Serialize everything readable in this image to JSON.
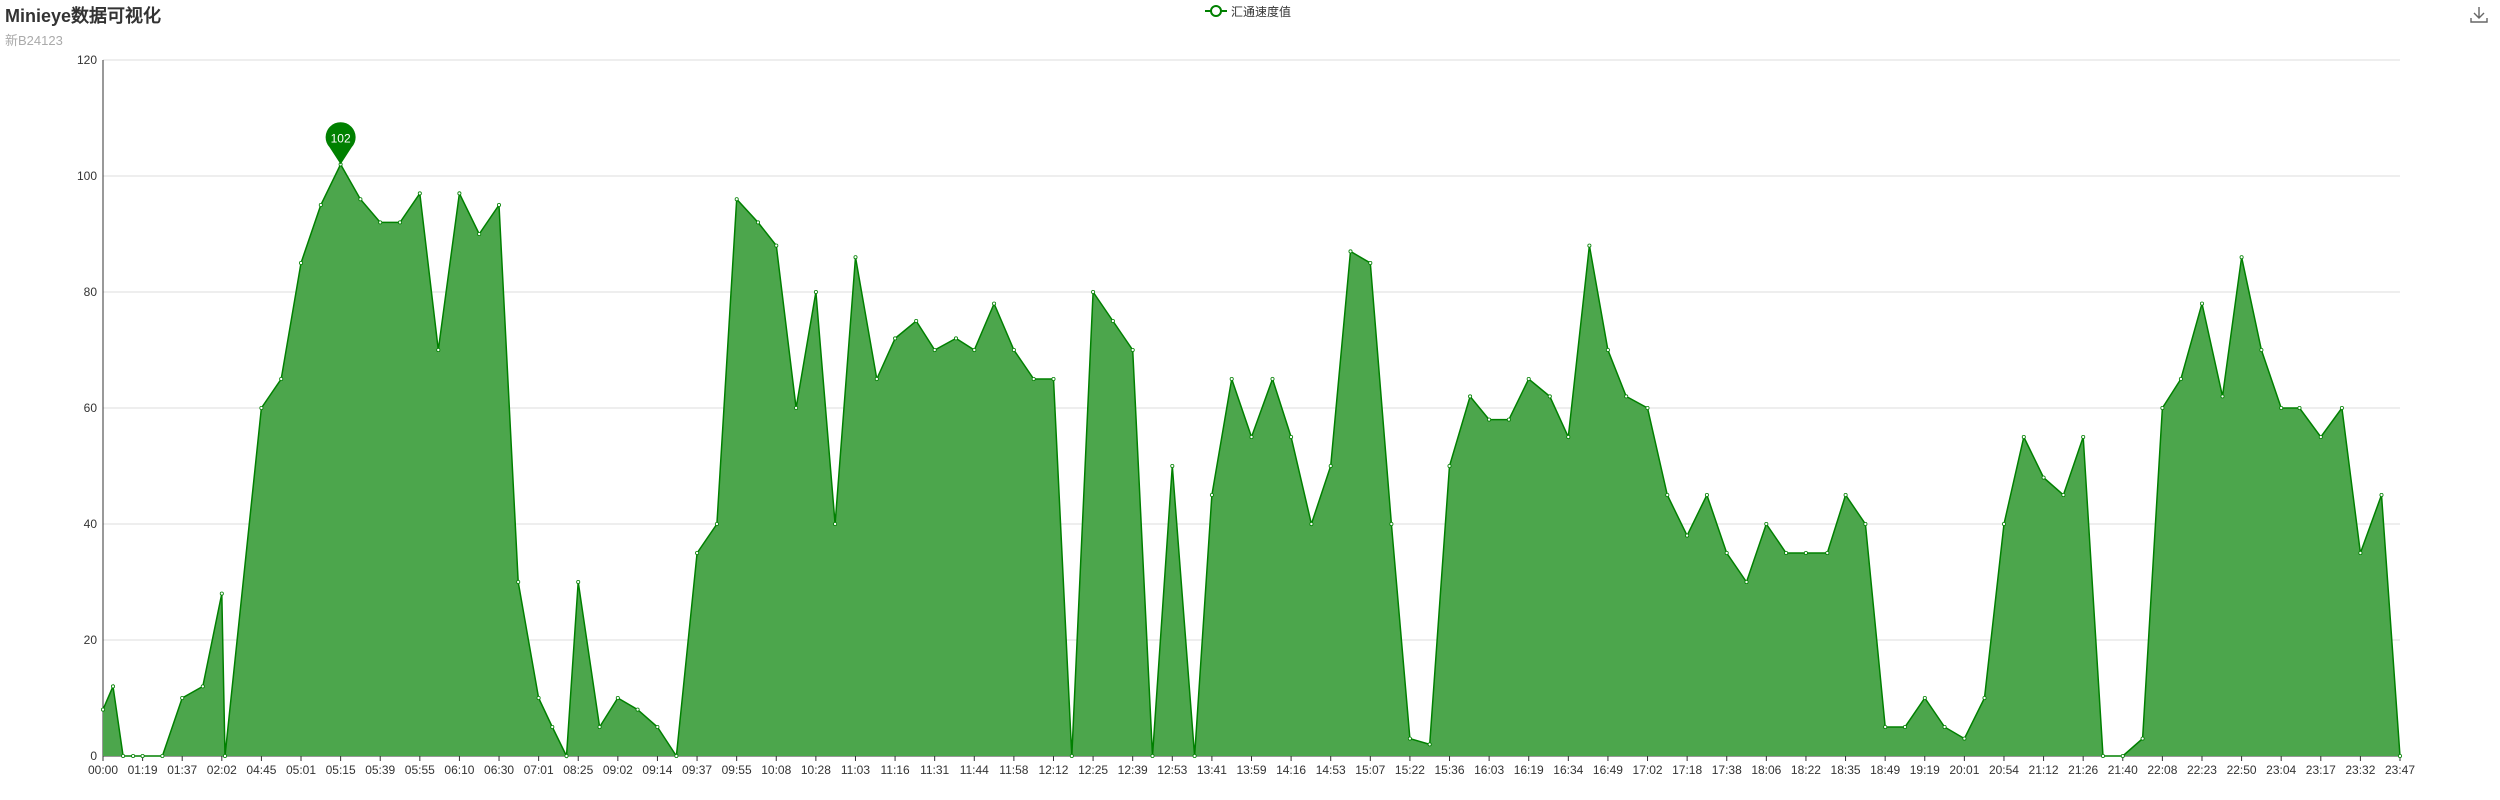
{
  "title": "Minieye数据可视化",
  "subtitle": "新B24123",
  "legend": {
    "label": "汇通速度值",
    "color": "#008000"
  },
  "toolbox": {
    "icon": "download-icon"
  },
  "chart_data": {
    "type": "area",
    "title": "Minieye数据可视化",
    "subtitle": "新B24123",
    "xlabel": "",
    "ylabel": "",
    "ylim": [
      0,
      120
    ],
    "y_ticks": [
      0,
      20,
      40,
      60,
      80,
      100,
      120
    ],
    "x_tick_labels": [
      "00:00",
      "01:19",
      "01:37",
      "02:02",
      "04:45",
      "05:01",
      "05:15",
      "05:39",
      "05:55",
      "06:10",
      "06:30",
      "07:01",
      "08:25",
      "09:02",
      "09:14",
      "09:37",
      "09:55",
      "10:08",
      "10:28",
      "11:03",
      "11:16",
      "11:31",
      "11:44",
      "11:58",
      "12:12",
      "12:25",
      "12:39",
      "12:53",
      "13:41",
      "13:59",
      "14:16",
      "14:53",
      "15:07",
      "15:22",
      "15:36",
      "16:03",
      "16:19",
      "16:34",
      "16:49",
      "17:02",
      "17:18",
      "17:38",
      "18:06",
      "18:22",
      "18:35",
      "18:49",
      "19:19",
      "20:01",
      "20:54",
      "21:12",
      "21:26",
      "21:40",
      "22:08",
      "22:23",
      "22:50",
      "23:04",
      "23:17",
      "23:32",
      "23:47"
    ],
    "grid": true,
    "legend_position": "top-center",
    "line_color": "#008000",
    "area_color": "#4ca64c",
    "series": [
      {
        "name": "汇通速度值",
        "x": [
          "00:00",
          "00:20",
          "00:40",
          "01:00",
          "01:19",
          "01:28",
          "01:37",
          "01:50",
          "02:02",
          "02:15",
          "04:45",
          "04:53",
          "05:01",
          "05:08",
          "05:15",
          "05:27",
          "05:39",
          "05:47",
          "05:55",
          "06:02",
          "06:10",
          "06:20",
          "06:30",
          "06:45",
          "07:01",
          "07:30",
          "08:00",
          "08:25",
          "08:45",
          "09:02",
          "09:08",
          "09:14",
          "09:25",
          "09:37",
          "09:46",
          "09:55",
          "10:02",
          "10:08",
          "10:18",
          "10:28",
          "10:45",
          "11:03",
          "11:10",
          "11:16",
          "11:24",
          "11:31",
          "11:38",
          "11:44",
          "11:51",
          "11:58",
          "12:05",
          "12:12",
          "12:18",
          "12:25",
          "12:32",
          "12:39",
          "12:46",
          "12:53",
          "13:20",
          "13:41",
          "13:50",
          "13:59",
          "14:08",
          "14:16",
          "14:35",
          "14:53",
          "15:00",
          "15:07",
          "15:15",
          "15:22",
          "15:29",
          "15:36",
          "15:50",
          "16:03",
          "16:11",
          "16:19",
          "16:27",
          "16:34",
          "16:42",
          "16:49",
          "16:55",
          "17:02",
          "17:10",
          "17:18",
          "17:28",
          "17:38",
          "17:52",
          "18:06",
          "18:14",
          "18:22",
          "18:29",
          "18:35",
          "18:42",
          "18:49",
          "19:04",
          "19:19",
          "19:40",
          "20:01",
          "20:28",
          "20:54",
          "21:03",
          "21:12",
          "21:19",
          "21:26",
          "21:33",
          "21:40",
          "21:54",
          "22:08",
          "22:15",
          "22:23",
          "22:37",
          "22:50",
          "22:57",
          "23:04",
          "23:10",
          "23:17",
          "23:25",
          "23:32",
          "23:40",
          "23:47"
        ],
        "values": [
          8,
          12,
          0,
          0,
          0,
          0,
          10,
          12,
          28,
          0,
          60,
          65,
          85,
          95,
          102,
          96,
          92,
          92,
          97,
          70,
          97,
          90,
          95,
          30,
          10,
          5,
          0,
          30,
          5,
          10,
          8,
          5,
          0,
          35,
          40,
          96,
          92,
          88,
          60,
          80,
          40,
          86,
          65,
          72,
          75,
          70,
          72,
          70,
          78,
          70,
          65,
          65,
          0,
          80,
          75,
          70,
          0,
          50,
          0,
          45,
          65,
          55,
          65,
          55,
          40,
          50,
          87,
          85,
          40,
          3,
          2,
          50,
          62,
          58,
          58,
          65,
          62,
          55,
          88,
          70,
          62,
          60,
          45,
          38,
          45,
          35,
          30,
          40,
          35,
          35,
          35,
          45,
          40,
          5,
          5,
          10,
          5,
          3,
          10,
          40,
          55,
          48,
          45,
          55,
          0,
          0,
          3,
          60,
          65,
          78,
          62,
          86,
          70,
          60,
          60,
          55,
          60,
          35,
          45,
          0
        ]
      }
    ],
    "markPoint": {
      "label": "102",
      "x": "05:15",
      "value": 102
    }
  }
}
